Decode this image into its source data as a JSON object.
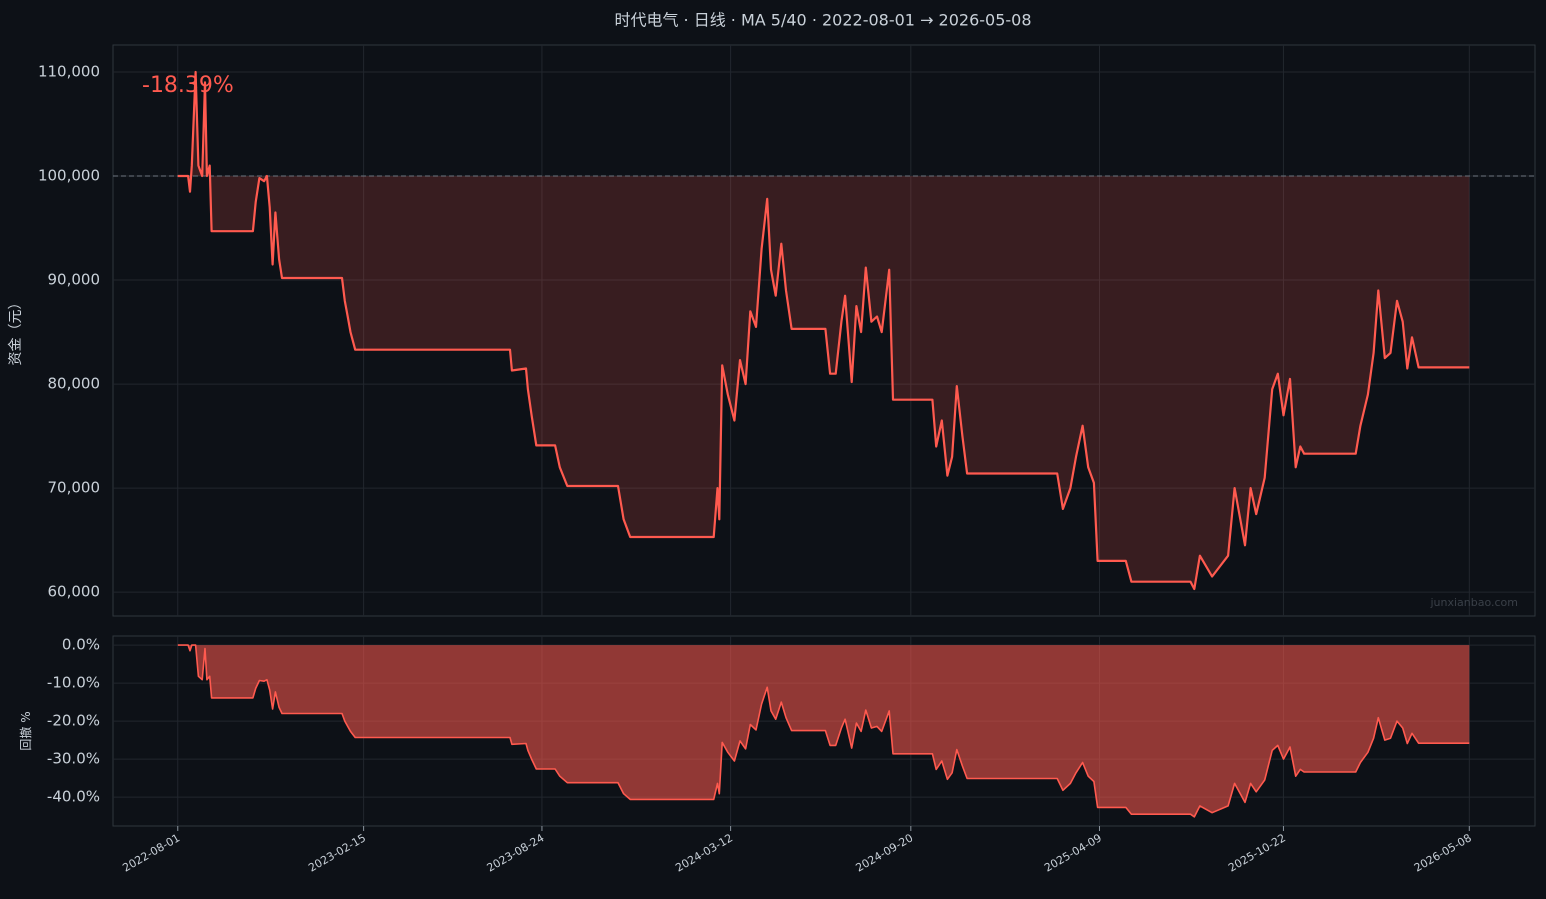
{
  "chart_data": [
    {
      "type": "line",
      "title": "时代电气 · 日线 · MA 5/40 · 2022-08-01 → 2026-05-08",
      "ylabel": "资金（元）",
      "annotation": "-18.39%",
      "watermark": "junxianbao.com",
      "color": "#ff5a4f",
      "baseline": 100000,
      "xlim": [
        "2022-05-24",
        "2026-07-17"
      ],
      "ylim": [
        57700,
        112600
      ],
      "yticks": [
        {
          "value": 60000,
          "label": "60,000"
        },
        {
          "value": 70000,
          "label": "70,000"
        },
        {
          "value": 80000,
          "label": "80,000"
        },
        {
          "value": 90000,
          "label": "90,000"
        },
        {
          "value": 100000,
          "label": "100,000"
        },
        {
          "value": 110000,
          "label": "110,000"
        }
      ],
      "xticks": [
        "2022-08-01",
        "2023-02-15",
        "2023-08-24",
        "2024-03-12",
        "2024-09-20",
        "2025-04-09",
        "2025-10-22",
        "2026-05-08"
      ],
      "grid": true,
      "x": [
        "2022-08-01",
        "2022-08-12",
        "2022-08-14",
        "2022-08-16",
        "2022-08-20",
        "2022-08-23",
        "2022-08-27",
        "2022-08-30",
        "2022-09-01",
        "2022-09-04",
        "2022-09-06",
        "2022-10-20",
        "2022-10-23",
        "2022-10-27",
        "2022-11-01",
        "2022-11-04",
        "2022-11-07",
        "2022-11-10",
        "2022-11-13",
        "2022-11-17",
        "2022-11-20",
        "2023-01-23",
        "2023-01-26",
        "2023-01-29",
        "2023-02-01",
        "2023-02-06",
        "2023-07-21",
        "2023-07-23",
        "2023-08-07",
        "2023-08-09",
        "2023-08-13",
        "2023-08-18",
        "2023-09-07",
        "2023-09-12",
        "2023-09-20",
        "2023-11-13",
        "2023-11-19",
        "2023-11-26",
        "2024-02-23",
        "2024-02-27",
        "2024-02-29",
        "2024-03-03",
        "2024-03-09",
        "2024-03-16",
        "2024-03-22",
        "2024-03-28",
        "2024-04-02",
        "2024-04-08",
        "2024-04-14",
        "2024-04-20",
        "2024-04-24",
        "2024-04-29",
        "2024-05-05",
        "2024-05-10",
        "2024-05-16",
        "2024-06-21",
        "2024-06-26",
        "2024-07-02",
        "2024-07-08",
        "2024-07-12",
        "2024-07-19",
        "2024-07-24",
        "2024-07-29",
        "2024-08-03",
        "2024-08-09",
        "2024-08-15",
        "2024-08-20",
        "2024-08-28",
        "2024-09-01",
        "2024-10-13",
        "2024-10-17",
        "2024-10-23",
        "2024-10-29",
        "2024-11-03",
        "2024-11-08",
        "2024-11-14",
        "2024-11-19",
        "2025-02-23",
        "2025-03-01",
        "2025-03-09",
        "2025-03-15",
        "2025-03-22",
        "2025-03-28",
        "2025-04-03",
        "2025-04-07",
        "2025-05-07",
        "2025-05-13",
        "2025-07-15",
        "2025-07-19",
        "2025-07-25",
        "2025-08-07",
        "2025-08-24",
        "2025-08-31",
        "2025-09-06",
        "2025-09-11",
        "2025-09-17",
        "2025-09-23",
        "2025-10-02",
        "2025-10-10",
        "2025-10-16",
        "2025-10-22",
        "2025-10-29",
        "2025-11-04",
        "2025-11-09",
        "2025-11-13",
        "2026-01-07",
        "2026-01-12",
        "2026-01-20",
        "2026-01-26",
        "2026-01-31",
        "2026-02-07",
        "2026-02-13",
        "2026-02-20",
        "2026-02-26",
        "2026-03-03",
        "2026-03-08",
        "2026-03-15",
        "2026-05-08"
      ],
      "values": [
        100000,
        100000,
        98500,
        101000,
        110000,
        101000,
        100000,
        109000,
        100000,
        101000,
        94700,
        94700,
        97500,
        99800,
        99500,
        100000,
        97000,
        91500,
        96500,
        92000,
        90200,
        90200,
        88000,
        86500,
        85000,
        83300,
        83300,
        81300,
        81500,
        79500,
        77000,
        74100,
        74100,
        72000,
        70200,
        70200,
        67000,
        65300,
        65300,
        70000,
        67000,
        81800,
        79000,
        76500,
        82300,
        80000,
        87000,
        85500,
        93000,
        97800,
        91000,
        88500,
        93500,
        89000,
        85300,
        85300,
        81000,
        81000,
        86000,
        88500,
        80200,
        87500,
        85000,
        91200,
        86000,
        86500,
        85000,
        91000,
        78500,
        78500,
        74000,
        76500,
        71200,
        73000,
        79800,
        75000,
        71400,
        71400,
        68000,
        70000,
        73000,
        76000,
        72000,
        70500,
        63000,
        63000,
        61000,
        61000,
        60300,
        63500,
        61500,
        63500,
        70000,
        67000,
        64500,
        70000,
        67500,
        71000,
        79500,
        81000,
        77000,
        80500,
        72000,
        74000,
        73300,
        73300,
        76000,
        79000,
        83000,
        89000,
        82500,
        83000,
        88000,
        86000,
        81500,
        84500,
        81600,
        81600
      ]
    },
    {
      "type": "area",
      "ylabel": "回撤 %",
      "color": "#ff5a4f",
      "baseline": 0,
      "xlim": [
        "2022-05-24",
        "2026-07-17"
      ],
      "ylim": [
        -47.6,
        2.4
      ],
      "yticks": [
        {
          "value": -40,
          "label": "-40.0%"
        },
        {
          "value": -30,
          "label": "-30.0%"
        },
        {
          "value": -20,
          "label": "-20.0%"
        },
        {
          "value": -10,
          "label": "-10.0%"
        },
        {
          "value": 0,
          "label": "0.0%"
        }
      ],
      "xticks": [
        "2022-08-01",
        "2023-02-15",
        "2023-08-24",
        "2024-03-12",
        "2024-09-20",
        "2025-04-09",
        "2025-10-22",
        "2026-05-08"
      ],
      "grid": true,
      "x": [
        "2022-08-01",
        "2022-08-12",
        "2022-08-14",
        "2022-08-16",
        "2022-08-20",
        "2022-08-23",
        "2022-08-27",
        "2022-08-30",
        "2022-09-01",
        "2022-09-04",
        "2022-09-06",
        "2022-10-20",
        "2022-10-23",
        "2022-10-27",
        "2022-11-01",
        "2022-11-04",
        "2022-11-07",
        "2022-11-10",
        "2022-11-13",
        "2022-11-17",
        "2022-11-20",
        "2023-01-23",
        "2023-01-26",
        "2023-01-29",
        "2023-02-01",
        "2023-02-06",
        "2023-07-21",
        "2023-07-23",
        "2023-08-07",
        "2023-08-09",
        "2023-08-13",
        "2023-08-18",
        "2023-09-07",
        "2023-09-12",
        "2023-09-20",
        "2023-11-13",
        "2023-11-19",
        "2023-11-26",
        "2024-02-23",
        "2024-02-27",
        "2024-02-29",
        "2024-03-03",
        "2024-03-09",
        "2024-03-16",
        "2024-03-22",
        "2024-03-28",
        "2024-04-02",
        "2024-04-08",
        "2024-04-14",
        "2024-04-20",
        "2024-04-24",
        "2024-04-29",
        "2024-05-05",
        "2024-05-10",
        "2024-05-16",
        "2024-06-21",
        "2024-06-26",
        "2024-07-02",
        "2024-07-08",
        "2024-07-12",
        "2024-07-19",
        "2024-07-24",
        "2024-07-29",
        "2024-08-03",
        "2024-08-09",
        "2024-08-15",
        "2024-08-20",
        "2024-08-28",
        "2024-09-01",
        "2024-10-13",
        "2024-10-17",
        "2024-10-23",
        "2024-10-29",
        "2024-11-03",
        "2024-11-08",
        "2024-11-14",
        "2024-11-19",
        "2025-02-23",
        "2025-03-01",
        "2025-03-09",
        "2025-03-15",
        "2025-03-22",
        "2025-03-28",
        "2025-04-03",
        "2025-04-07",
        "2025-05-07",
        "2025-05-13",
        "2025-07-15",
        "2025-07-19",
        "2025-07-25",
        "2025-08-07",
        "2025-08-24",
        "2025-08-31",
        "2025-09-06",
        "2025-09-11",
        "2025-09-17",
        "2025-09-23",
        "2025-10-02",
        "2025-10-10",
        "2025-10-16",
        "2025-10-22",
        "2025-10-29",
        "2025-11-04",
        "2025-11-09",
        "2025-11-13",
        "2026-01-07",
        "2026-01-12",
        "2026-01-20",
        "2026-01-26",
        "2026-01-31",
        "2026-02-07",
        "2026-02-13",
        "2026-02-20",
        "2026-02-26",
        "2026-03-03",
        "2026-03-08",
        "2026-03-15",
        "2026-05-08"
      ],
      "values": [
        0,
        0,
        -1.5,
        0,
        0,
        -8.2,
        -9.1,
        -0.9,
        -9.1,
        -8.2,
        -13.9,
        -13.9,
        -11.4,
        -9.3,
        -9.5,
        -9.1,
        -11.8,
        -16.8,
        -12.3,
        -16.4,
        -18.0,
        -18.0,
        -20.0,
        -21.4,
        -22.7,
        -24.3,
        -24.3,
        -26.1,
        -25.9,
        -27.7,
        -30.0,
        -32.6,
        -32.6,
        -34.5,
        -36.2,
        -36.2,
        -39.1,
        -40.6,
        -40.6,
        -36.4,
        -39.1,
        -25.6,
        -28.2,
        -30.5,
        -25.2,
        -27.3,
        -20.9,
        -22.3,
        -15.5,
        -11.1,
        -17.3,
        -19.5,
        -15.0,
        -19.1,
        -22.5,
        -22.5,
        -26.4,
        -26.4,
        -21.8,
        -19.5,
        -27.1,
        -20.5,
        -22.7,
        -17.1,
        -21.8,
        -21.4,
        -22.7,
        -17.3,
        -28.6,
        -28.6,
        -32.7,
        -30.5,
        -35.3,
        -33.6,
        -27.5,
        -31.8,
        -35.1,
        -35.1,
        -38.2,
        -36.4,
        -33.6,
        -30.9,
        -34.5,
        -35.9,
        -42.7,
        -42.7,
        -44.5,
        -44.5,
        -45.2,
        -42.3,
        -44.1,
        -42.3,
        -36.4,
        -39.1,
        -41.4,
        -36.4,
        -38.6,
        -35.5,
        -27.7,
        -26.4,
        -30.0,
        -26.8,
        -34.5,
        -32.7,
        -33.4,
        -33.4,
        -30.9,
        -28.2,
        -24.5,
        -19.1,
        -25.0,
        -24.5,
        -20.0,
        -21.8,
        -25.9,
        -23.2,
        -25.8,
        -25.8
      ]
    }
  ]
}
